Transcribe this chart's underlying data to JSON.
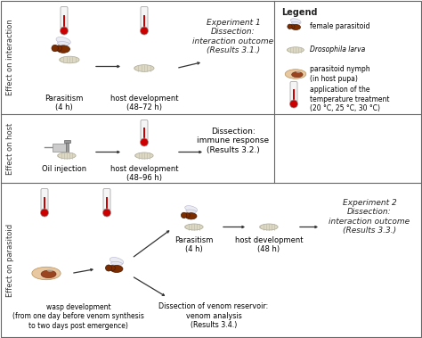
{
  "bg_color": "#ffffff",
  "border_color": "#666666",
  "arrow_color": "#333333",
  "therm_red": "#cc0000",
  "therm_body": "#f5f5f5",
  "wasp_color": "#7B2D00",
  "larva_color": "#e8e0d0",
  "pupa_color": "#e8c8a0",
  "panel_labels": {
    "top": "Effect on interaction",
    "mid": "Effect on host",
    "bot": "Effect on parasitoid"
  },
  "legend_title": "Legend",
  "legend_items": [
    "female parasitoid",
    "Drosophila larva",
    "parasitoid nymph\n(in host pupa)",
    "application of the\ntemperature treatment\n(20 °C, 25 °C, 30 °C)"
  ],
  "exp1_label": "Experiment 1\nDissection:\ninteraction outcome\n(Results 3.1.)",
  "exp2_label": "Experiment 2\nDissection:\ninteraction outcome\n(Results 3.3.)",
  "dissection_immune": "Dissection:\nimmune response\n(Results 3.2.)",
  "dissection_venom": "Dissection of venom reservoir:\nvenom analysis\n(Results 3.4.)",
  "parasitism_4h": "Parasitism\n(4 h)",
  "host_dev_48_72": "host development\n(48–72 h)",
  "host_dev_48_96": "host development\n(48–96 h)",
  "host_dev_48": "host development\n(48 h)",
  "oil_injection": "Oil injection",
  "wasp_dev": "wasp development\n(from one day before venom synthesis\nto two days post emergence)"
}
